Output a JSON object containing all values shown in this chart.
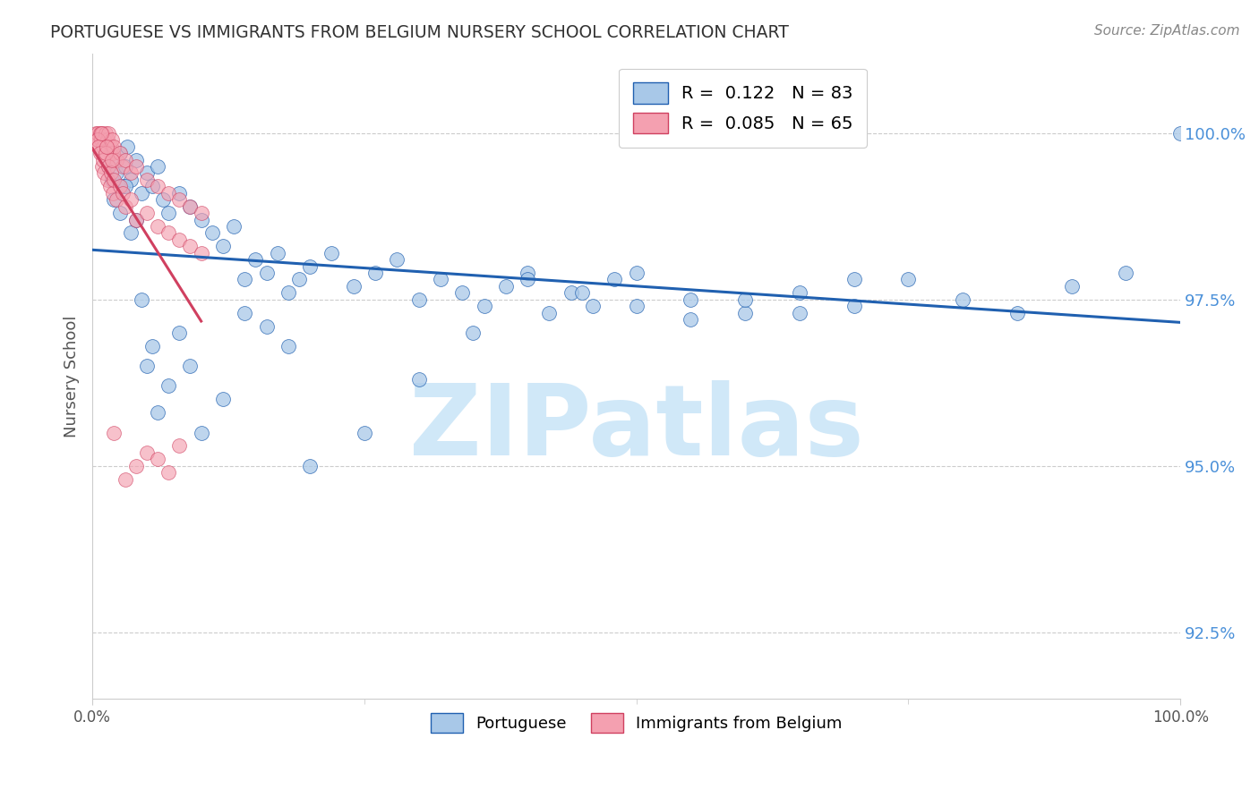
{
  "title": "PORTUGUESE VS IMMIGRANTS FROM BELGIUM NURSERY SCHOOL CORRELATION CHART",
  "source": "Source: ZipAtlas.com",
  "ylabel": "Nursery School",
  "yticks": [
    92.5,
    95.0,
    97.5,
    100.0
  ],
  "ytick_labels": [
    "92.5%",
    "95.0%",
    "97.5%",
    "100.0%"
  ],
  "xlim": [
    0.0,
    100.0
  ],
  "ylim": [
    91.5,
    101.2
  ],
  "color_blue": "#a8c8e8",
  "color_pink": "#f4a0b0",
  "color_line_blue": "#2060b0",
  "color_line_pink": "#d04060",
  "color_axis_label": "#4a90d9",
  "watermark_text": "ZIPatlas",
  "watermark_color": "#d0e8f8",
  "blue_x": [
    1.2,
    1.5,
    1.8,
    2.0,
    2.2,
    2.5,
    2.8,
    3.0,
    3.2,
    3.5,
    4.0,
    4.5,
    5.0,
    5.5,
    6.0,
    6.5,
    7.0,
    8.0,
    9.0,
    10.0,
    11.0,
    12.0,
    13.0,
    14.0,
    15.0,
    16.0,
    17.0,
    18.0,
    19.0,
    20.0,
    22.0,
    24.0,
    26.0,
    28.0,
    30.0,
    32.0,
    34.0,
    36.0,
    38.0,
    40.0,
    42.0,
    44.0,
    46.0,
    48.0,
    50.0,
    55.0,
    60.0,
    65.0,
    70.0,
    75.0,
    80.0,
    85.0,
    90.0,
    95.0,
    100.0,
    2.0,
    2.5,
    3.0,
    3.5,
    4.0,
    4.5,
    5.0,
    5.5,
    6.0,
    7.0,
    8.0,
    9.0,
    10.0,
    12.0,
    14.0,
    16.0,
    18.0,
    20.0,
    25.0,
    30.0,
    35.0,
    40.0,
    45.0,
    50.0,
    55.0,
    60.0,
    65.0,
    70.0
  ],
  "blue_y": [
    99.8,
    99.5,
    99.3,
    99.6,
    99.4,
    99.7,
    99.2,
    99.5,
    99.8,
    99.3,
    99.6,
    99.1,
    99.4,
    99.2,
    99.5,
    99.0,
    98.8,
    99.1,
    98.9,
    98.7,
    98.5,
    98.3,
    98.6,
    97.8,
    98.1,
    97.9,
    98.2,
    97.6,
    97.8,
    98.0,
    98.2,
    97.7,
    97.9,
    98.1,
    97.5,
    97.8,
    97.6,
    97.4,
    97.7,
    97.9,
    97.3,
    97.6,
    97.4,
    97.8,
    97.9,
    97.5,
    97.3,
    97.6,
    97.4,
    97.8,
    97.5,
    97.3,
    97.7,
    97.9,
    100.0,
    99.0,
    98.8,
    99.2,
    98.5,
    98.7,
    97.5,
    96.5,
    96.8,
    95.8,
    96.2,
    97.0,
    96.5,
    95.5,
    96.0,
    97.3,
    97.1,
    96.8,
    95.0,
    95.5,
    96.3,
    97.0,
    97.8,
    97.6,
    97.4,
    97.2,
    97.5,
    97.3,
    97.8
  ],
  "pink_x": [
    0.3,
    0.4,
    0.5,
    0.6,
    0.7,
    0.8,
    0.9,
    1.0,
    1.1,
    1.2,
    1.3,
    1.4,
    1.5,
    1.6,
    1.7,
    1.8,
    1.9,
    2.0,
    2.2,
    2.5,
    2.8,
    3.0,
    3.5,
    4.0,
    5.0,
    6.0,
    7.0,
    8.0,
    9.0,
    10.0,
    0.5,
    0.6,
    0.7,
    0.8,
    0.9,
    1.0,
    1.1,
    1.2,
    1.3,
    1.4,
    1.5,
    1.6,
    1.7,
    1.8,
    1.9,
    2.0,
    2.2,
    2.5,
    2.8,
    3.0,
    3.5,
    4.0,
    5.0,
    6.0,
    7.0,
    8.0,
    9.0,
    10.0,
    2.0,
    3.0,
    4.0,
    5.0,
    6.0,
    7.0,
    8.0
  ],
  "pink_y": [
    100.0,
    99.9,
    100.0,
    99.8,
    100.0,
    99.9,
    100.0,
    99.8,
    99.9,
    100.0,
    99.8,
    99.9,
    100.0,
    99.7,
    99.8,
    99.9,
    99.7,
    99.8,
    99.6,
    99.7,
    99.5,
    99.6,
    99.4,
    99.5,
    99.3,
    99.2,
    99.1,
    99.0,
    98.9,
    98.8,
    99.9,
    99.8,
    99.7,
    100.0,
    99.5,
    99.6,
    99.4,
    99.7,
    99.8,
    99.3,
    99.5,
    99.2,
    99.4,
    99.6,
    99.1,
    99.3,
    99.0,
    99.2,
    99.1,
    98.9,
    99.0,
    98.7,
    98.8,
    98.6,
    98.5,
    98.4,
    98.3,
    98.2,
    95.5,
    94.8,
    95.0,
    95.2,
    95.1,
    94.9,
    95.3
  ]
}
